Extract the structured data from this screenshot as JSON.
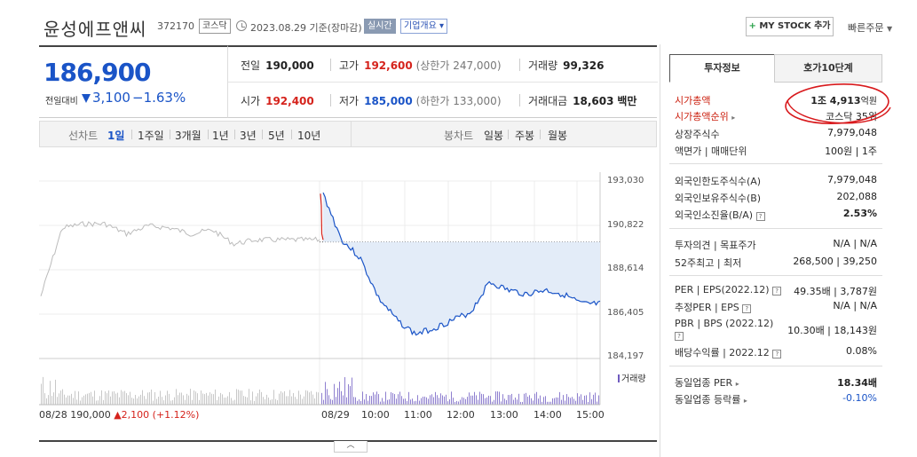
{
  "header": {
    "company_name": "윤성에프앤씨",
    "code": "372170",
    "market_badge": "코스닥",
    "date_text": "2023.08.29 기준(장마감)",
    "realtime_label": "실시간",
    "company_info_label": "기업개요 ▾",
    "mystock_label": "MY STOCK 추가",
    "quick_order_label": "빠른주문"
  },
  "price": {
    "current": "186,900",
    "change_label": "전일대비",
    "change": "3,100",
    "change_pct": "−1.63%"
  },
  "stats": {
    "prev_close_label": "전일",
    "prev_close": "190,000",
    "high_label": "고가",
    "high": "192,600",
    "upper_limit": "(상한가 247,000)",
    "volume_label": "거래량",
    "volume": "99,326",
    "open_label": "시가",
    "open": "192,400",
    "low_label": "저가",
    "low": "185,000",
    "lower_limit": "(하한가 133,000)",
    "amount_label": "거래대금",
    "amount": "18,603",
    "amount_unit": "백만"
  },
  "period_bar": {
    "line_label": "선차트",
    "line_items": [
      "1일",
      "1주일",
      "3개월",
      "1년",
      "3년",
      "5년",
      "10년"
    ],
    "active_index": 0,
    "candle_label": "봉차트",
    "candle_items": [
      "일봉",
      "주봉",
      "월봉"
    ]
  },
  "chart_data": {
    "type": "line",
    "title": "",
    "y_ticks": [
      "193,030",
      "190,822",
      "188,614",
      "186,405",
      "184,197"
    ],
    "ylim": [
      184197,
      193030
    ],
    "x_ticks": [
      "08/29",
      "10:00",
      "11:00",
      "12:00",
      "13:00",
      "14:00",
      "15:00"
    ],
    "prev_day_label": "08/28",
    "prev_day_price": "190,000",
    "prev_day_change": "▲2,100 (+1.12%)",
    "reference_price": 190000,
    "volume_label": "거래량",
    "series": [
      {
        "name": "",
        "x": [
          "08/28 09:00",
          "08/28 09:30",
          "08/28 10:00",
          "08/28 10:30",
          "08/28 11:00",
          "08/28 11:30",
          "08/28 12:00",
          "08/28 12:30",
          "08/28 13:00",
          "08/28 13:30",
          "08/28 14:00",
          "08/28 14:30",
          "08/28 15:00",
          "08/28 15:30"
        ],
        "values": [
          187300,
          190700,
          190900,
          190900,
          190400,
          190800,
          190700,
          190400,
          190600,
          189900,
          190100,
          190100,
          190100,
          190100
        ],
        "color": "#bbbbbb"
      },
      {
        "name": "",
        "x": [
          "09:00",
          "09:05",
          "09:10",
          "09:30",
          "10:00",
          "10:30",
          "11:00",
          "11:30",
          "12:00",
          "12:30",
          "13:00",
          "13:30",
          "14:00",
          "14:30",
          "15:00",
          "15:30"
        ],
        "values": [
          192400,
          190100,
          189200,
          187200,
          186100,
          185400,
          185700,
          186100,
          186500,
          188000,
          187600,
          187400,
          187600,
          187400,
          186900,
          186900
        ],
        "color": "#1a54c7"
      }
    ],
    "grid": true
  },
  "side": {
    "tab_invest": "투자정보",
    "tab_orderbook": "호가10단계",
    "rows": [
      {
        "k": "시가총액",
        "v1": "1조 4,913",
        "unit": "억원"
      },
      {
        "k": "시가총액순위",
        "v1": "코스닥 35위"
      },
      {
        "k": "상장주식수",
        "v1": "7,979,048"
      },
      {
        "k": "액면가 | 매매단위",
        "v1": "100원 | 1주"
      },
      {
        "k": "외국인한도주식수(A)",
        "v1": "7,979,048"
      },
      {
        "k": "외국인보유주식수(B)",
        "v1": "202,088"
      },
      {
        "k": "외국인소진율(B/A)",
        "v1": "2.53%"
      },
      {
        "k": "투자의견 | 목표주가",
        "v1": "N/A | N/A"
      },
      {
        "k": "52주최고 | 최저",
        "v1": "268,500 | 39,250"
      },
      {
        "k": "PER | EPS(2022.12)",
        "v1": "49.35배 | 3,787원"
      },
      {
        "k": "추정PER | EPS",
        "v1": "N/A | N/A"
      },
      {
        "k": "PBR | BPS (2022.12)",
        "v1": "10.30배 | 18,143원"
      },
      {
        "k": "배당수익률 | 2022.12",
        "v1": "0.08%"
      },
      {
        "k": "동일업종 PER",
        "v1": "18.34배"
      },
      {
        "k": "동일업종 등락률",
        "v1": "-0.10%"
      }
    ]
  }
}
